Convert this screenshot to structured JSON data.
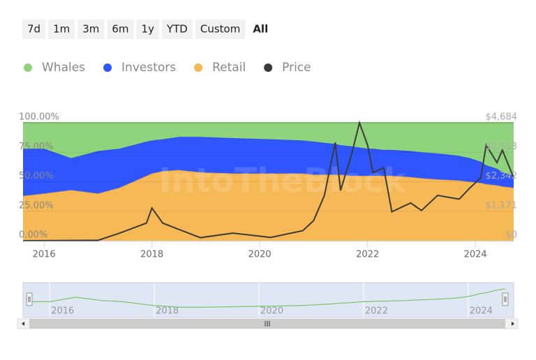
{
  "range_buttons": [
    "7d",
    "1m",
    "3m",
    "6m",
    "1y",
    "YTD",
    "Custom",
    "All"
  ],
  "selected_range": 7,
  "chart_data": {
    "type": "stacked-area",
    "watermark": "IntoTheBlock",
    "x": [
      2015.61,
      2016.0,
      2016.5,
      2017.0,
      2017.4,
      2017.9,
      2018.0,
      2018.2,
      2018.5,
      2018.9,
      2019.5,
      2020.2,
      2020.8,
      2021.0,
      2021.2,
      2021.4,
      2021.5,
      2021.7,
      2021.85,
      2022.0,
      2022.1,
      2022.3,
      2022.45,
      2022.8,
      2023.0,
      2023.3,
      2023.7,
      2023.9,
      2024.1,
      2024.2,
      2024.4,
      2024.5,
      2024.71
    ],
    "xlim": [
      2015.61,
      2024.71
    ],
    "xticks": [
      2016,
      2018,
      2020,
      2022,
      2024
    ],
    "ylim": [
      0,
      100
    ],
    "yticks": [
      {
        "value": 0,
        "label": "0.00%"
      },
      {
        "value": 25,
        "label": "25.00%"
      },
      {
        "value": 50,
        "label": "50.00%"
      },
      {
        "value": 75,
        "label": "75.00%"
      },
      {
        "value": 100,
        "label": "100.00%"
      }
    ],
    "y2lim": [
      0,
      4684
    ],
    "y2ticks": [
      {
        "value": 0,
        "label": "$0"
      },
      {
        "value": 1171,
        "label": "$1,171"
      },
      {
        "value": 2342,
        "label": "$2,342"
      },
      {
        "value": 3513,
        "label": "$3,513"
      },
      {
        "value": 4684,
        "label": "$4,684"
      }
    ],
    "series": [
      {
        "name": "Whales",
        "color": "#8fd47c",
        "values": [
          22,
          22,
          30,
          24,
          22,
          16,
          15,
          14,
          12,
          12,
          13,
          14,
          15,
          16,
          17,
          18,
          19,
          20,
          21,
          22,
          22,
          23,
          23,
          24,
          25,
          26,
          28,
          30,
          33,
          36,
          39,
          42,
          45
        ]
      },
      {
        "name": "Investors",
        "color": "#2f55ff",
        "values": [
          40,
          38,
          27,
          36,
          33,
          29,
          28,
          27,
          28,
          30,
          30,
          29,
          28,
          28,
          27,
          26,
          25,
          25,
          24,
          23,
          23,
          22,
          22,
          22,
          22,
          22,
          21,
          20,
          18,
          16,
          14,
          12,
          10
        ]
      },
      {
        "name": "Retail",
        "color": "#f7b955",
        "values": [
          38,
          40,
          43,
          40,
          45,
          55,
          57,
          59,
          60,
          58,
          57,
          57,
          57,
          56,
          56,
          56,
          56,
          55,
          55,
          55,
          55,
          55,
          55,
          54,
          53,
          52,
          51,
          50,
          49,
          48,
          47,
          46,
          45
        ]
      },
      {
        "name": "Price",
        "color": "#3a3a3a",
        "axis": "y2",
        "values": [
          0,
          5,
          10,
          15,
          300,
          700,
          1300,
          700,
          450,
          120,
          300,
          130,
          400,
          800,
          1800,
          3900,
          2000,
          3400,
          4684,
          3800,
          2700,
          2900,
          1150,
          1500,
          1200,
          1800,
          1650,
          2100,
          2500,
          3800,
          3100,
          3600,
          2500
        ]
      }
    ]
  }
}
